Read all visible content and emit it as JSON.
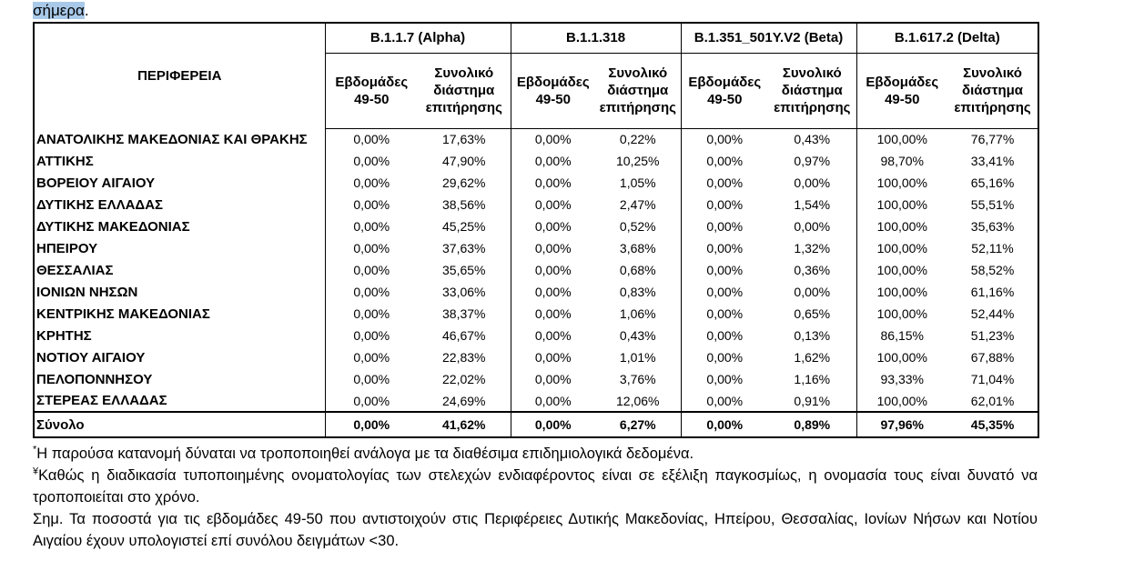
{
  "page": {
    "highlighted_word": "σήμερα",
    "period": ".",
    "highlight_color": "#a9c9e8"
  },
  "table": {
    "region_header": "ΠΕΡΙΦΕΡΕΙΑ",
    "variants": [
      {
        "name": "B.1.1.7 (Alpha)"
      },
      {
        "name": "B.1.1.318"
      },
      {
        "name": "B.1.351_501Y.V2 (Beta)"
      },
      {
        "name": "B.1.617.2 (Delta)"
      }
    ],
    "subheaders": {
      "weeks": "Εβδομάδες 49-50",
      "total": "Συνολικό διάστημα επιτήρησης"
    },
    "rows": [
      {
        "region": "ΑΝΑΤΟΛΙΚΗΣ ΜΑΚΕΔΟΝΙΑΣ ΚΑΙ ΘΡΑΚΗΣ",
        "values": [
          "0,00%",
          "17,63%",
          "0,00%",
          "0,22%",
          "0,00%",
          "0,43%",
          "100,00%",
          "76,77%"
        ]
      },
      {
        "region": "ΑΤΤΙΚΗΣ",
        "values": [
          "0,00%",
          "47,90%",
          "0,00%",
          "10,25%",
          "0,00%",
          "0,97%",
          "98,70%",
          "33,41%"
        ]
      },
      {
        "region": "ΒΟΡΕΙΟΥ ΑΙΓΑΙΟΥ",
        "values": [
          "0,00%",
          "29,62%",
          "0,00%",
          "1,05%",
          "0,00%",
          "0,00%",
          "100,00%",
          "65,16%"
        ]
      },
      {
        "region": "ΔΥΤΙΚΗΣ ΕΛΛΑΔΑΣ",
        "values": [
          "0,00%",
          "38,56%",
          "0,00%",
          "2,47%",
          "0,00%",
          "1,54%",
          "100,00%",
          "55,51%"
        ]
      },
      {
        "region": "ΔΥΤΙΚΗΣ ΜΑΚΕΔΟΝΙΑΣ",
        "values": [
          "0,00%",
          "45,25%",
          "0,00%",
          "0,52%",
          "0,00%",
          "0,00%",
          "100,00%",
          "35,63%"
        ]
      },
      {
        "region": "ΗΠΕΙΡΟΥ",
        "values": [
          "0,00%",
          "37,63%",
          "0,00%",
          "3,68%",
          "0,00%",
          "1,32%",
          "100,00%",
          "52,11%"
        ]
      },
      {
        "region": "ΘΕΣΣΑΛΙΑΣ",
        "values": [
          "0,00%",
          "35,65%",
          "0,00%",
          "0,68%",
          "0,00%",
          "0,36%",
          "100,00%",
          "58,52%"
        ]
      },
      {
        "region": "ΙΟΝΙΩΝ ΝΗΣΩΝ",
        "values": [
          "0,00%",
          "33,06%",
          "0,00%",
          "0,83%",
          "0,00%",
          "0,00%",
          "100,00%",
          "61,16%"
        ]
      },
      {
        "region": "ΚΕΝΤΡΙΚΗΣ ΜΑΚΕΔΟΝΙΑΣ",
        "values": [
          "0,00%",
          "38,37%",
          "0,00%",
          "1,06%",
          "0,00%",
          "0,65%",
          "100,00%",
          "52,44%"
        ]
      },
      {
        "region": "ΚΡΗΤΗΣ",
        "values": [
          "0,00%",
          "46,67%",
          "0,00%",
          "0,43%",
          "0,00%",
          "0,13%",
          "86,15%",
          "51,23%"
        ]
      },
      {
        "region": "ΝΟΤΙΟΥ ΑΙΓΑΙΟΥ",
        "values": [
          "0,00%",
          "22,83%",
          "0,00%",
          "1,01%",
          "0,00%",
          "1,62%",
          "100,00%",
          "67,88%"
        ]
      },
      {
        "region": "ΠΕΛΟΠΟΝΝΗΣΟΥ",
        "values": [
          "0,00%",
          "22,02%",
          "0,00%",
          "3,76%",
          "0,00%",
          "1,16%",
          "93,33%",
          "71,04%"
        ]
      },
      {
        "region": "ΣΤΕΡΕΑΣ ΕΛΛΑΔΑΣ",
        "values": [
          "0,00%",
          "24,69%",
          "0,00%",
          "12,06%",
          "0,00%",
          "0,91%",
          "100,00%",
          "62,01%"
        ]
      }
    ],
    "total_row": {
      "region": "Σύνολο",
      "values": [
        "0,00%",
        "41,62%",
        "0,00%",
        "6,27%",
        "0,00%",
        "0,89%",
        "97,96%",
        "45,35%"
      ]
    }
  },
  "footnotes": [
    {
      "marker": "*",
      "text": "Η παρούσα κατανομή δύναται να τροποποιηθεί ανάλογα με τα διαθέσιμα επιδημιολογικά δεδομένα."
    },
    {
      "marker": "¥",
      "text": "Καθώς η διαδικασία τυποποιημένης ονοματολογίας των στελεχών ενδιαφέροντος είναι σε εξέλιξη παγκοσμίως, η ονομασία τους είναι δυνατό να τροποποιείται στο χρόνο."
    },
    {
      "marker": "",
      "text": "Σημ. Τα ποσοστά για τις εβδομάδες 49-50 που αντιστοιχούν στις Περιφέρειες Δυτικής Μακεδονίας, Ηπείρου, Θεσσαλίας, Ιονίων Νήσων και Νοτίου Αιγαίου έχουν υπολογιστεί επί συνόλου δειγμάτων <30."
    }
  ]
}
